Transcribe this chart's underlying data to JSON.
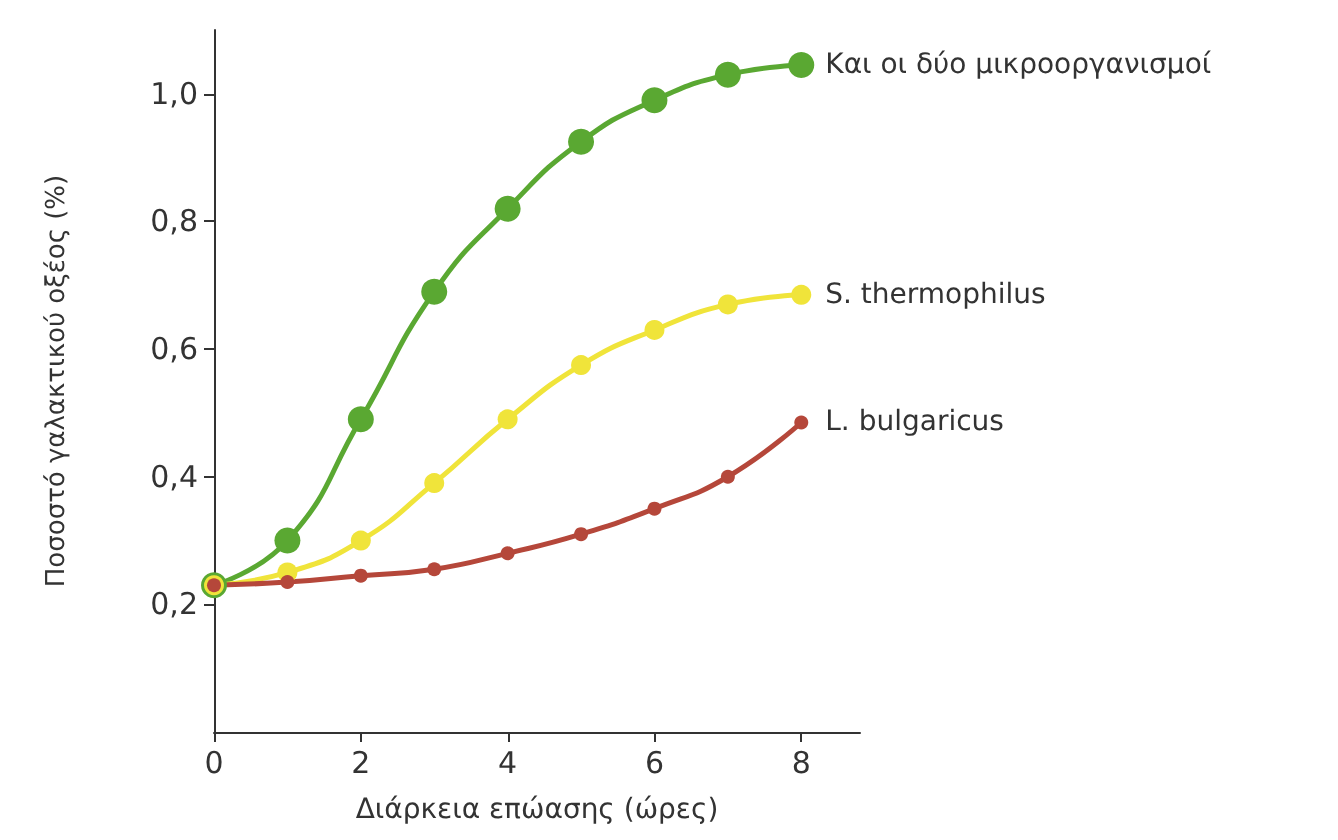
{
  "chart_data": {
    "type": "line",
    "xlabel": "Διάρκεια επώασης (ώρες)",
    "ylabel": "Ποσοστό γαλακτικού οξέος (%)",
    "x": [
      0,
      1,
      2,
      3,
      4,
      5,
      6,
      7,
      8
    ],
    "series": [
      {
        "name": "Και οι δύο μικροοργανισμοί",
        "color": "#5aa832",
        "values": [
          0.23,
          0.3,
          0.49,
          0.69,
          0.82,
          0.925,
          0.99,
          1.03,
          1.045
        ]
      },
      {
        "name": "S. thermophilus",
        "color": "#f0e43a",
        "values": [
          0.23,
          0.25,
          0.3,
          0.39,
          0.49,
          0.575,
          0.63,
          0.67,
          0.685
        ]
      },
      {
        "name": "L. bulgaricus",
        "color": "#b5473a",
        "values": [
          0.23,
          0.235,
          0.245,
          0.255,
          0.28,
          0.31,
          0.35,
          0.4,
          0.485
        ]
      }
    ],
    "xlim": [
      0,
      8.8
    ],
    "xticks": [
      0,
      2,
      4,
      6,
      8
    ],
    "ylim": [
      0,
      1.1
    ],
    "yticks": [
      {
        "value": 0.2,
        "label": "0,2"
      },
      {
        "value": 0.4,
        "label": "0,4"
      },
      {
        "value": 0.6,
        "label": "0,6"
      },
      {
        "value": 0.8,
        "label": "0,8"
      },
      {
        "value": 1.0,
        "label": "1,0"
      }
    ],
    "grid": false,
    "legend": false,
    "marker": "circle",
    "line_style": "solid"
  }
}
